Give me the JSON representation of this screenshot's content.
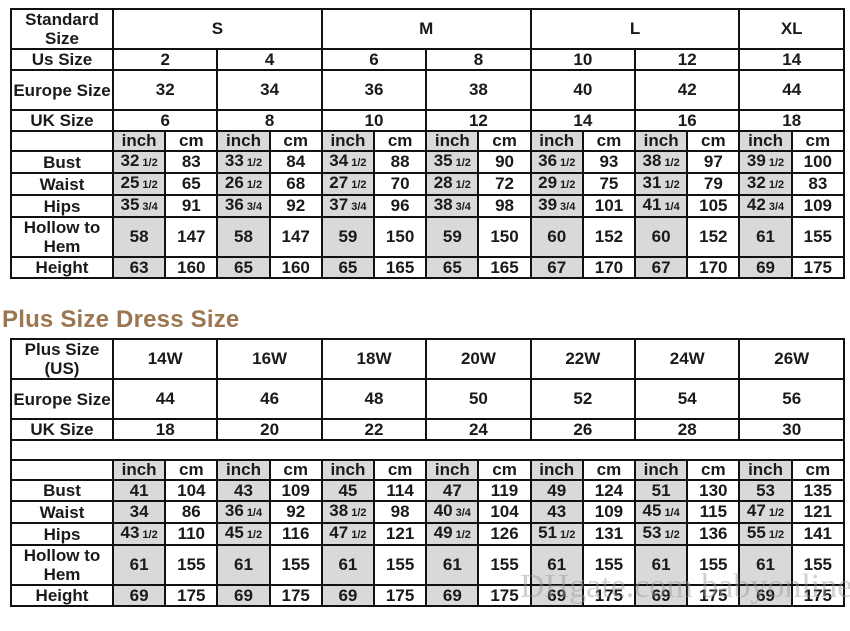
{
  "standard": {
    "header_label": "Standard Size",
    "groups": [
      {
        "label": "S",
        "span": 4
      },
      {
        "label": "M",
        "span": 4
      },
      {
        "label": "L",
        "span": 4
      },
      {
        "label": "XL",
        "span": 2
      }
    ],
    "rows": [
      {
        "label": "Us Size",
        "values": [
          "2",
          "4",
          "6",
          "8",
          "10",
          "12",
          "14"
        ]
      },
      {
        "label": "Europe Size",
        "values": [
          "32",
          "34",
          "36",
          "38",
          "40",
          "42",
          "44"
        ]
      },
      {
        "label": "UK Size",
        "values": [
          "6",
          "8",
          "10",
          "12",
          "14",
          "16",
          "18"
        ]
      }
    ],
    "unit_labels": [
      "inch",
      "cm"
    ],
    "measurements": [
      {
        "label": "Bust",
        "values": [
          "32 1/2",
          "83",
          "33 1/2",
          "84",
          "34 1/2",
          "88",
          "35 1/2",
          "90",
          "36 1/2",
          "93",
          "38 1/2",
          "97",
          "39 1/2",
          "100"
        ]
      },
      {
        "label": "Waist",
        "values": [
          "25 1/2",
          "65",
          "26 1/2",
          "68",
          "27 1/2",
          "70",
          "28 1/2",
          "72",
          "29 1/2",
          "75",
          "31 1/2",
          "79",
          "32 1/2",
          "83"
        ]
      },
      {
        "label": "Hips",
        "values": [
          "35 3/4",
          "91",
          "36 3/4",
          "92",
          "37 3/4",
          "96",
          "38 3/4",
          "98",
          "39 3/4",
          "101",
          "41 1/4",
          "105",
          "42 3/4",
          "109"
        ]
      },
      {
        "label": "Hollow to Hem",
        "values": [
          "58",
          "147",
          "58",
          "147",
          "59",
          "150",
          "59",
          "150",
          "60",
          "152",
          "60",
          "152",
          "61",
          "155"
        ]
      },
      {
        "label": "Height",
        "values": [
          "63",
          "160",
          "65",
          "160",
          "65",
          "165",
          "65",
          "165",
          "67",
          "170",
          "67",
          "170",
          "69",
          "175"
        ]
      }
    ]
  },
  "plus": {
    "title": "Plus Size Dress Size",
    "rows": [
      {
        "label": "Plus Size (US)",
        "values": [
          "14W",
          "16W",
          "18W",
          "20W",
          "22W",
          "24W",
          "26W"
        ]
      },
      {
        "label": "Europe Size",
        "values": [
          "44",
          "46",
          "48",
          "50",
          "52",
          "54",
          "56"
        ]
      },
      {
        "label": "UK Size",
        "values": [
          "18",
          "20",
          "22",
          "24",
          "26",
          "28",
          "30"
        ]
      }
    ],
    "unit_labels": [
      "inch",
      "cm"
    ],
    "measurements": [
      {
        "label": "Bust",
        "values": [
          "41",
          "104",
          "43",
          "109",
          "45",
          "114",
          "47",
          "119",
          "49",
          "124",
          "51",
          "130",
          "53",
          "135"
        ]
      },
      {
        "label": "Waist",
        "values": [
          "34",
          "86",
          "36 1/4",
          "92",
          "38 1/2",
          "98",
          "40 3/4",
          "104",
          "43",
          "109",
          "45 1/4",
          "115",
          "47 1/2",
          "121"
        ]
      },
      {
        "label": "Hips",
        "values": [
          "43 1/2",
          "110",
          "45 1/2",
          "116",
          "47 1/2",
          "121",
          "49 1/2",
          "126",
          "51 1/2",
          "131",
          "53 1/2",
          "136",
          "55 1/2",
          "141"
        ]
      },
      {
        "label": "Hollow to Hem",
        "values": [
          "61",
          "155",
          "61",
          "155",
          "61",
          "155",
          "61",
          "155",
          "61",
          "155",
          "61",
          "155",
          "61",
          "155"
        ]
      },
      {
        "label": "Height",
        "values": [
          "69",
          "175",
          "69",
          "175",
          "69",
          "175",
          "69",
          "175",
          "69",
          "175",
          "69",
          "175",
          "69",
          "175"
        ]
      }
    ]
  },
  "watermark": "DHgate.com babyonline"
}
